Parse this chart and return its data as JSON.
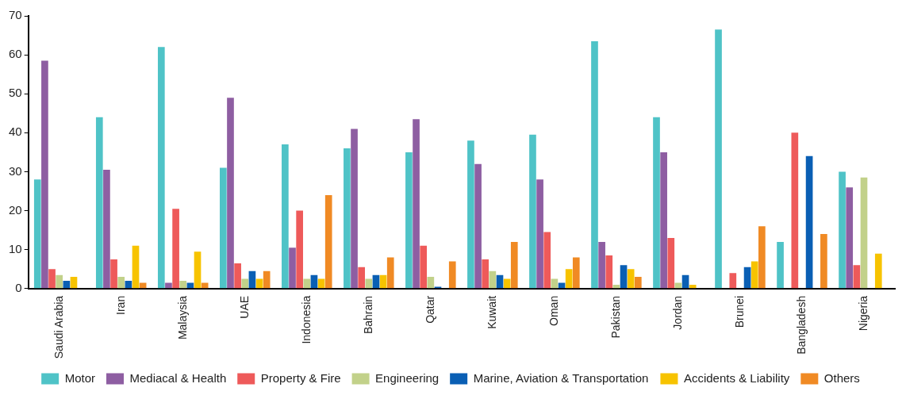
{
  "chart_data": {
    "type": "bar",
    "categories": [
      "Saudi Arabia",
      "Iran",
      "Malaysia",
      "UAE",
      "Indonesia",
      "Bahrain",
      "Qatar",
      "Kuwait",
      "Oman",
      "Pakistan",
      "Jordan",
      "Brunei",
      "Bangladesh",
      "Nigeria"
    ],
    "series": [
      {
        "name": "Motor",
        "color": "#4fc3c7",
        "values": [
          28,
          44,
          62,
          31,
          37,
          36,
          35,
          38,
          39.5,
          63.5,
          44,
          66.5,
          12,
          30
        ]
      },
      {
        "name": "Mediacal & Health",
        "color": "#8e5ea2",
        "values": [
          58.5,
          30.5,
          1.5,
          49,
          10.5,
          41,
          43.5,
          32,
          28,
          12,
          35,
          0,
          0,
          26
        ]
      },
      {
        "name": "Property & Fire",
        "color": "#ee5a5a",
        "values": [
          5,
          7.5,
          20.5,
          6.5,
          20,
          5.5,
          11,
          7.5,
          14.5,
          8.5,
          13,
          4,
          40,
          6
        ]
      },
      {
        "name": "Engineering",
        "color": "#c2d18a",
        "values": [
          3.5,
          3,
          2,
          2.5,
          2.5,
          2.5,
          3,
          4.5,
          2.5,
          1,
          1.5,
          0,
          0,
          28.5
        ]
      },
      {
        "name": "Marine, Aviation & Transportation",
        "color": "#0a5fb4",
        "values": [
          2,
          2,
          1.5,
          4.5,
          3.5,
          3.5,
          0.5,
          3.5,
          1.5,
          6,
          3.5,
          5.5,
          34,
          0
        ]
      },
      {
        "name": "Accidents & Liability",
        "color": "#f7c300",
        "values": [
          3,
          11,
          9.5,
          2.5,
          2.5,
          3.5,
          0,
          2.5,
          5,
          5,
          1,
          7,
          0,
          9
        ]
      },
      {
        "name": "Others",
        "color": "#f08a24",
        "values": [
          0,
          1.5,
          1.5,
          4.5,
          24,
          8,
          7,
          12,
          8,
          3,
          0,
          16,
          14,
          0
        ]
      }
    ],
    "ylim": [
      0,
      70
    ],
    "yticks": [
      0,
      10,
      20,
      30,
      40,
      50,
      60,
      70
    ],
    "grid": false,
    "legend": "bottom"
  }
}
